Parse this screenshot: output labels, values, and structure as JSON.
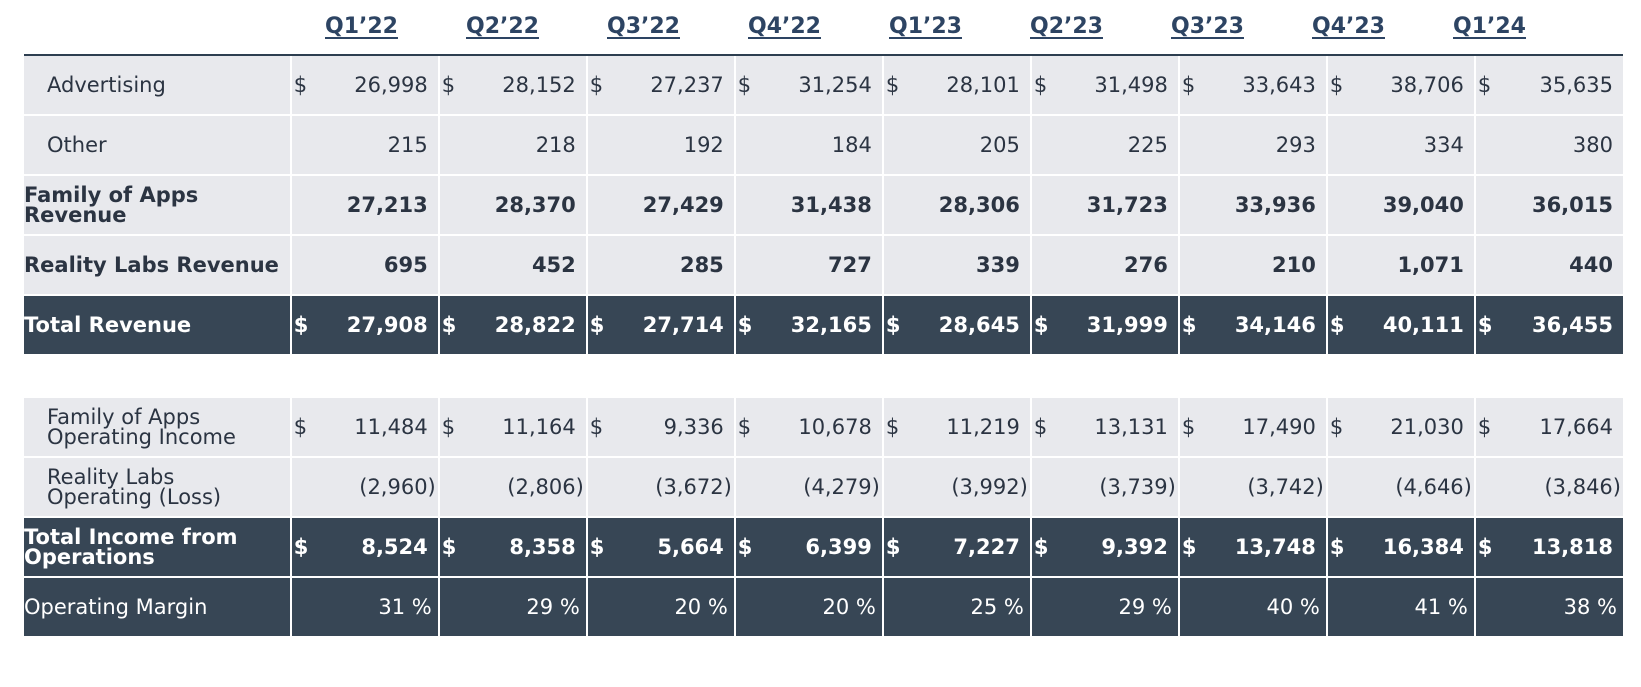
{
  "quarters": [
    "Q1’22",
    "Q2’22",
    "Q3’22",
    "Q4’22",
    "Q1’23",
    "Q2’23",
    "Q3’23",
    "Q4’23",
    "Q1’24"
  ],
  "currency_symbol": "$",
  "revenue_table": {
    "rows": [
      {
        "label_lines": [
          "Advertising"
        ],
        "values": [
          "26,998",
          "28,152",
          "27,237",
          "31,254",
          "28,101",
          "31,498",
          "33,643",
          "38,706",
          "35,635"
        ],
        "currency": true
      },
      {
        "label_lines": [
          "Other"
        ],
        "values": [
          "215",
          "218",
          "192",
          "184",
          "205",
          "225",
          "293",
          "334",
          "380"
        ],
        "currency": false
      },
      {
        "label_lines": [
          "Family of Apps",
          "Revenue"
        ],
        "values": [
          "27,213",
          "28,370",
          "27,429",
          "31,438",
          "28,306",
          "31,723",
          "33,936",
          "39,040",
          "36,015"
        ],
        "currency": false
      },
      {
        "label_lines": [
          "Reality Labs Revenue"
        ],
        "values": [
          "695",
          "452",
          "285",
          "727",
          "339",
          "276",
          "210",
          "1,071",
          "440"
        ],
        "currency": false
      },
      {
        "label_lines": [
          "Total Revenue"
        ],
        "values": [
          "27,908",
          "28,822",
          "27,714",
          "32,165",
          "28,645",
          "31,999",
          "34,146",
          "40,111",
          "36,455"
        ],
        "currency": true
      }
    ]
  },
  "income_table": {
    "rows": [
      {
        "label_lines": [
          "Family of Apps",
          "Operating Income"
        ],
        "values": [
          "11,484",
          "11,164",
          "9,336",
          "10,678",
          "11,219",
          "13,131",
          "17,490",
          "21,030",
          "17,664"
        ],
        "currency": true
      },
      {
        "label_lines": [
          "Reality Labs",
          "Operating (Loss)"
        ],
        "values": [
          "(2,960)",
          "(2,806)",
          "(3,672)",
          "(4,279)",
          "(3,992)",
          "(3,739)",
          "(3,742)",
          "(4,646)",
          "(3,846)"
        ],
        "currency": false
      },
      {
        "label_lines": [
          "Total Income from",
          "Operations"
        ],
        "values": [
          "8,524",
          "8,358",
          "5,664",
          "6,399",
          "7,227",
          "9,392",
          "13,748",
          "16,384",
          "13,818"
        ],
        "currency": true
      },
      {
        "label_lines": [
          "Operating Margin"
        ],
        "values": [
          "31 %",
          "29 %",
          "20 %",
          "20 %",
          "25 %",
          "29 %",
          "40 %",
          "41 %",
          "38 %"
        ],
        "currency": false
      }
    ]
  }
}
